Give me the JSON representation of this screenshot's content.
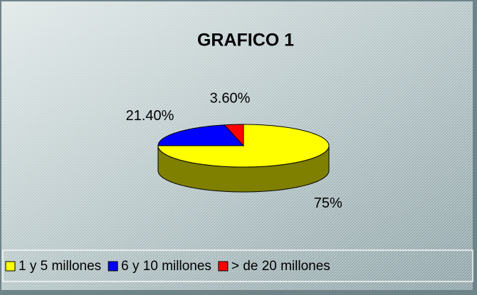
{
  "chart_data": {
    "type": "pie3d",
    "title": "GRAFICO 1",
    "categories": [
      "1 y 5 millones",
      "6 y 10 millones",
      "> de 20 millones"
    ],
    "values": [
      75,
      21.4,
      3.6
    ],
    "value_labels": [
      "75%",
      "21.40%",
      "3.60%"
    ],
    "colors": [
      "#ffff00",
      "#0000ff",
      "#ff0000"
    ],
    "legend": "bottom"
  }
}
